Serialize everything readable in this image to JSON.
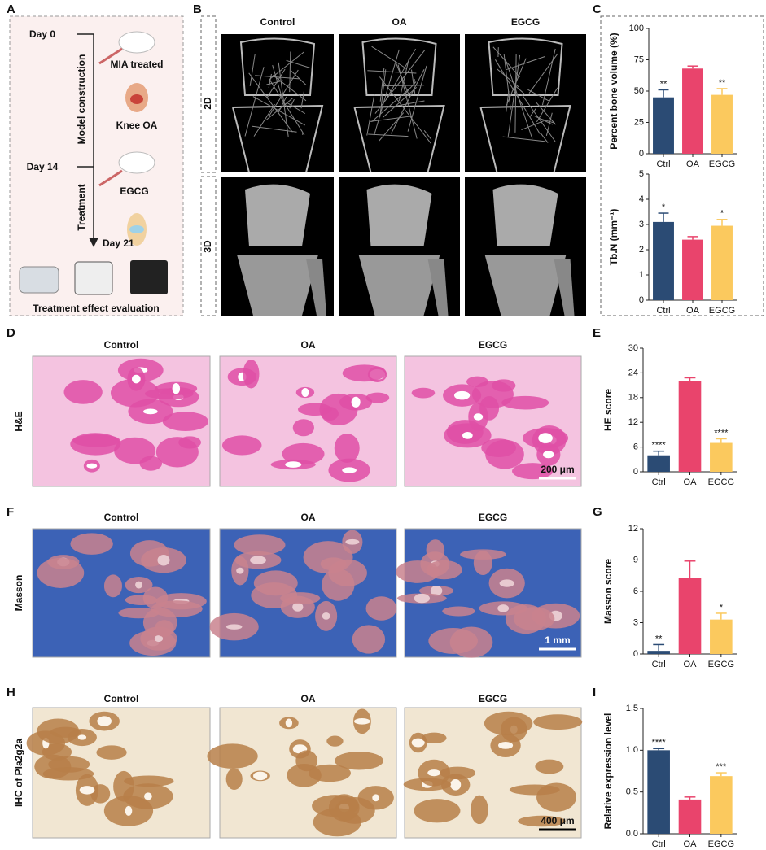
{
  "panel_labels": [
    "A",
    "B",
    "C",
    "D",
    "E",
    "F",
    "G",
    "H",
    "I"
  ],
  "workflow": {
    "day0": "Day 0",
    "mia": "MIA treated",
    "knee": "Knee OA",
    "day14": "Day 14",
    "egcg": "EGCG",
    "day21": "Day 21",
    "model": "Model construction",
    "treatment": "Treatment",
    "evaluation": "Treatment effect evaluation"
  },
  "micro_ct": {
    "columns": [
      "Control",
      "OA",
      "EGCG"
    ],
    "rows": [
      "2D",
      "3D"
    ]
  },
  "histology": [
    {
      "columns": [
        "Control",
        "OA",
        "EGCG"
      ],
      "stain": "H&E",
      "scale_bar": "200 μm"
    },
    {
      "columns": [
        "Control",
        "OA",
        "EGCG"
      ],
      "stain": "Masson",
      "scale_bar": "1 mm"
    },
    {
      "columns": [
        "Control",
        "OA",
        "EGCG"
      ],
      "stain": "IHC of Pla2g2a",
      "scale_bar": "400 μm"
    }
  ],
  "chart_data": [
    {
      "type": "bar",
      "y_label": "Percent bone volume (%)",
      "categories": [
        "Ctrl",
        "OA",
        "EGCG"
      ],
      "values": [
        45,
        68,
        47
      ],
      "errors": [
        6,
        2,
        5
      ],
      "significance": [
        "**",
        null,
        "**"
      ],
      "colors": [
        "#2b4b74",
        "#e9446c",
        "#fbc95e"
      ],
      "ylim": [
        0,
        100
      ],
      "yticks": [
        0,
        25,
        50,
        75,
        100
      ]
    },
    {
      "type": "bar",
      "y_label": "Tb.N (mm⁻¹)",
      "categories": [
        "Ctrl",
        "OA",
        "EGCG"
      ],
      "values": [
        3.1,
        2.4,
        2.95
      ],
      "errors": [
        0.35,
        0.12,
        0.25
      ],
      "significance": [
        "*",
        null,
        "*"
      ],
      "colors": [
        "#2b4b74",
        "#e9446c",
        "#fbc95e"
      ],
      "ylim": [
        0,
        5
      ],
      "yticks": [
        0,
        1,
        2,
        3,
        4,
        5
      ]
    },
    {
      "type": "bar",
      "y_label": "HE  score",
      "categories": [
        "Ctrl",
        "OA",
        "EGCG"
      ],
      "values": [
        4,
        22,
        7
      ],
      "errors": [
        1,
        0.8,
        1
      ],
      "significance": [
        "****",
        null,
        "****"
      ],
      "colors": [
        "#2b4b74",
        "#e9446c",
        "#fbc95e"
      ],
      "ylim": [
        0,
        30
      ],
      "yticks": [
        0,
        6,
        12,
        18,
        24,
        30
      ]
    },
    {
      "type": "bar",
      "y_label": "Masson  score",
      "categories": [
        "Ctrl",
        "OA",
        "EGCG"
      ],
      "values": [
        0.3,
        7.3,
        3.3
      ],
      "errors": [
        0.6,
        1.6,
        0.6
      ],
      "significance": [
        "**",
        null,
        "*"
      ],
      "colors": [
        "#2b4b74",
        "#e9446c",
        "#fbc95e"
      ],
      "ylim": [
        0,
        12
      ],
      "yticks": [
        0,
        3,
        6,
        9,
        12
      ]
    },
    {
      "type": "bar",
      "y_label": "Relative  expression level",
      "categories": [
        "Ctrl",
        "OA",
        "EGCG"
      ],
      "values": [
        1.0,
        0.41,
        0.69
      ],
      "errors": [
        0.02,
        0.03,
        0.04
      ],
      "significance": [
        "****",
        null,
        "***"
      ],
      "colors": [
        "#2b4b74",
        "#e9446c",
        "#fbc95e"
      ],
      "ylim": [
        0,
        1.5
      ],
      "yticks": [
        {
          "value": 0,
          "label": "0.0"
        },
        0.5,
        {
          "value": 1,
          "label": "1.0"
        },
        1.5
      ]
    }
  ]
}
